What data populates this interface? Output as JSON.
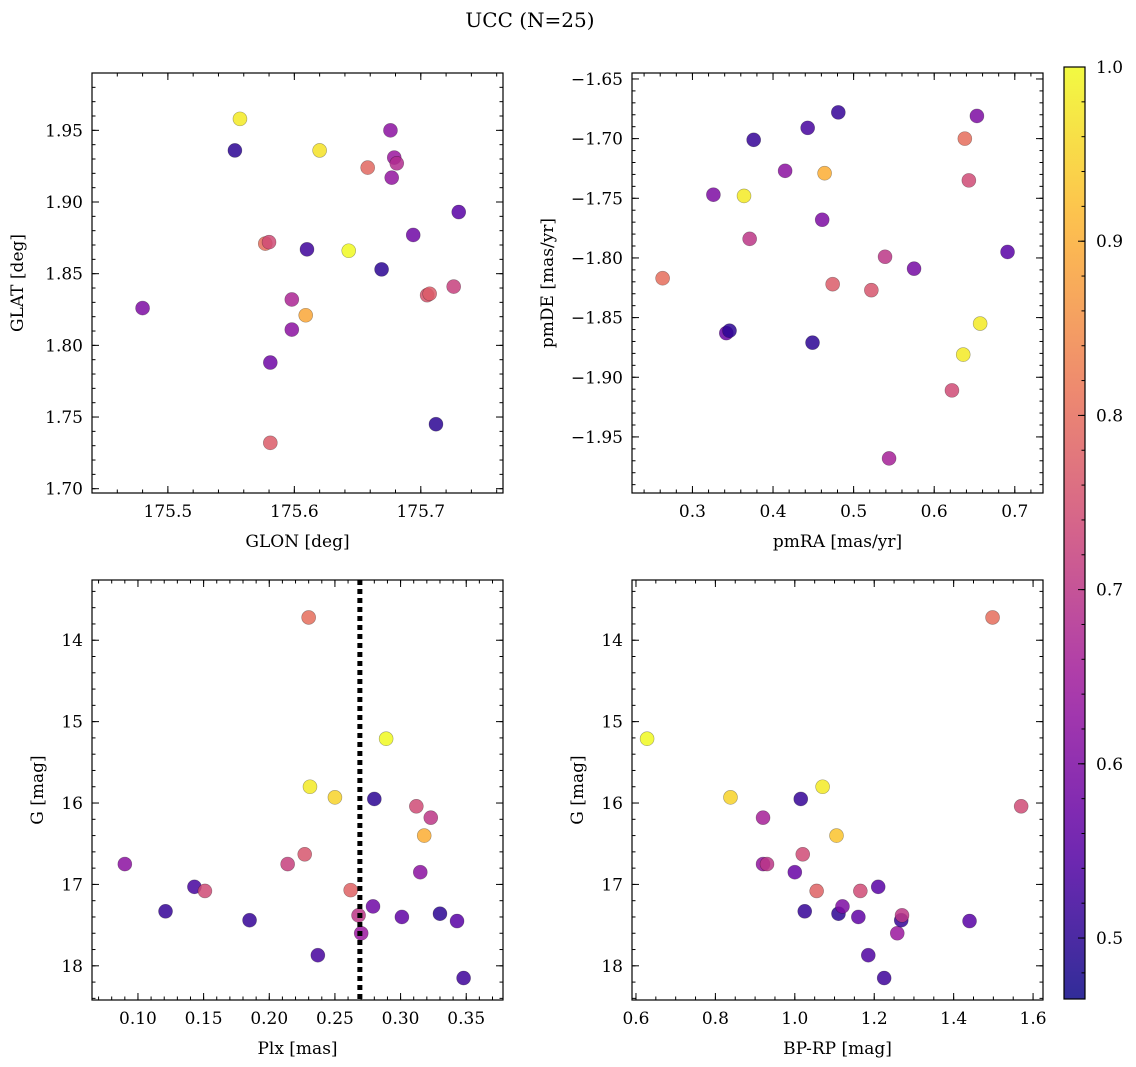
{
  "figure": {
    "title": "UCC (N=25)"
  },
  "colors": {
    "plasma_stops": [
      "#0d0887",
      "#5c01a6",
      "#9c179e",
      "#cc4778",
      "#ed7953",
      "#fdb42f",
      "#f0f921"
    ],
    "threshold_line": "#000000"
  },
  "chart_data": [
    {
      "type": "scatter",
      "name": "position",
      "xlabel": "GLON [deg]",
      "ylabel": "GLAT [deg]",
      "xlim": [
        175.44,
        175.765
      ],
      "ylim": [
        1.697,
        1.99
      ],
      "x_ticks": [
        175.5,
        175.6,
        175.7
      ],
      "x_tick_labels": [
        "175.5",
        "175.6",
        "175.7"
      ],
      "y_ticks": [
        1.7,
        1.75,
        1.8,
        1.85,
        1.9,
        1.95
      ],
      "y_tick_labels": [
        "1.70",
        "1.75",
        "1.80",
        "1.85",
        "1.90",
        "1.95"
      ],
      "x_minor_step": 0.02,
      "y_minor_step": 0.01,
      "points": [
        {
          "x": 175.48,
          "y": 1.826,
          "c": 0.6
        },
        {
          "x": 175.553,
          "y": 1.936,
          "c": 0.5
        },
        {
          "x": 175.557,
          "y": 1.958,
          "c": 0.98
        },
        {
          "x": 175.577,
          "y": 1.871,
          "c": 0.8
        },
        {
          "x": 175.58,
          "y": 1.872,
          "c": 0.74
        },
        {
          "x": 175.581,
          "y": 1.788,
          "c": 0.58
        },
        {
          "x": 175.581,
          "y": 1.732,
          "c": 0.77
        },
        {
          "x": 175.598,
          "y": 1.832,
          "c": 0.67
        },
        {
          "x": 175.598,
          "y": 1.811,
          "c": 0.62
        },
        {
          "x": 175.609,
          "y": 1.821,
          "c": 0.89
        },
        {
          "x": 175.61,
          "y": 1.867,
          "c": 0.52
        },
        {
          "x": 175.62,
          "y": 1.936,
          "c": 0.97
        },
        {
          "x": 175.643,
          "y": 1.866,
          "c": 1.0
        },
        {
          "x": 175.658,
          "y": 1.924,
          "c": 0.79
        },
        {
          "x": 175.669,
          "y": 1.853,
          "c": 0.5
        },
        {
          "x": 175.676,
          "y": 1.95,
          "c": 0.62
        },
        {
          "x": 175.677,
          "y": 1.917,
          "c": 0.63
        },
        {
          "x": 175.679,
          "y": 1.931,
          "c": 0.64
        },
        {
          "x": 175.681,
          "y": 1.927,
          "c": 0.68
        },
        {
          "x": 175.694,
          "y": 1.877,
          "c": 0.58
        },
        {
          "x": 175.705,
          "y": 1.835,
          "c": 0.76
        },
        {
          "x": 175.707,
          "y": 1.836,
          "c": 0.77
        },
        {
          "x": 175.712,
          "y": 1.745,
          "c": 0.5
        },
        {
          "x": 175.726,
          "y": 1.841,
          "c": 0.72
        },
        {
          "x": 175.73,
          "y": 1.893,
          "c": 0.55
        }
      ]
    },
    {
      "type": "scatter",
      "name": "proper-motion",
      "xlabel": "pmRA [mas/yr]",
      "ylabel": "pmDE [mas/yr]",
      "xlim": [
        0.225,
        0.735
      ],
      "ylim": [
        -1.997,
        -1.645
      ],
      "x_ticks": [
        0.3,
        0.4,
        0.5,
        0.6,
        0.7
      ],
      "x_tick_labels": [
        "0.3",
        "0.4",
        "0.5",
        "0.6",
        "0.7"
      ],
      "y_ticks": [
        -1.95,
        -1.9,
        -1.85,
        -1.8,
        -1.75,
        -1.7,
        -1.65
      ],
      "y_tick_labels": [
        "−1.95",
        "−1.90",
        "−1.85",
        "−1.80",
        "−1.75",
        "−1.70",
        "−1.65"
      ],
      "x_minor_step": 0.02,
      "y_minor_step": 0.01,
      "points": [
        {
          "x": 0.263,
          "y": -1.817,
          "c": 0.8
        },
        {
          "x": 0.326,
          "y": -1.747,
          "c": 0.6
        },
        {
          "x": 0.342,
          "y": -1.863,
          "c": 0.57
        },
        {
          "x": 0.346,
          "y": -1.861,
          "c": 0.5
        },
        {
          "x": 0.364,
          "y": -1.748,
          "c": 0.98
        },
        {
          "x": 0.371,
          "y": -1.784,
          "c": 0.7
        },
        {
          "x": 0.376,
          "y": -1.701,
          "c": 0.51
        },
        {
          "x": 0.415,
          "y": -1.727,
          "c": 0.62
        },
        {
          "x": 0.443,
          "y": -1.691,
          "c": 0.53
        },
        {
          "x": 0.449,
          "y": -1.871,
          "c": 0.5
        },
        {
          "x": 0.461,
          "y": -1.768,
          "c": 0.6
        },
        {
          "x": 0.464,
          "y": -1.729,
          "c": 0.9
        },
        {
          "x": 0.474,
          "y": -1.822,
          "c": 0.77
        },
        {
          "x": 0.481,
          "y": -1.678,
          "c": 0.51
        },
        {
          "x": 0.522,
          "y": -1.827,
          "c": 0.76
        },
        {
          "x": 0.539,
          "y": -1.799,
          "c": 0.7
        },
        {
          "x": 0.544,
          "y": -1.968,
          "c": 0.66
        },
        {
          "x": 0.575,
          "y": -1.809,
          "c": 0.59
        },
        {
          "x": 0.622,
          "y": -1.911,
          "c": 0.74
        },
        {
          "x": 0.636,
          "y": -1.881,
          "c": 0.98
        },
        {
          "x": 0.638,
          "y": -1.7,
          "c": 0.8
        },
        {
          "x": 0.643,
          "y": -1.735,
          "c": 0.74
        },
        {
          "x": 0.653,
          "y": -1.681,
          "c": 0.6
        },
        {
          "x": 0.657,
          "y": -1.855,
          "c": 0.98
        },
        {
          "x": 0.691,
          "y": -1.795,
          "c": 0.55
        }
      ]
    },
    {
      "type": "scatter",
      "name": "plx-vs-g",
      "xlabel": "Plx [mas]",
      "ylabel": "G [mag]",
      "xlim": [
        0.065,
        0.378
      ],
      "ylim": [
        18.42,
        13.26
      ],
      "x_ticks": [
        0.1,
        0.15,
        0.2,
        0.25,
        0.3,
        0.35
      ],
      "x_tick_labels": [
        "0.10",
        "0.15",
        "0.20",
        "0.25",
        "0.30",
        "0.35"
      ],
      "y_ticks": [
        14,
        15,
        16,
        17,
        18
      ],
      "y_tick_labels": [
        "14",
        "15",
        "16",
        "17",
        "18"
      ],
      "x_minor_step": 0.01,
      "y_minor_step": 0.2,
      "vline": 0.269,
      "points": [
        {
          "x": 0.09,
          "y": 16.75,
          "c": 0.62
        },
        {
          "x": 0.121,
          "y": 17.33,
          "c": 0.51
        },
        {
          "x": 0.143,
          "y": 17.03,
          "c": 0.53
        },
        {
          "x": 0.151,
          "y": 17.08,
          "c": 0.74
        },
        {
          "x": 0.185,
          "y": 17.44,
          "c": 0.51
        },
        {
          "x": 0.214,
          "y": 16.75,
          "c": 0.72
        },
        {
          "x": 0.227,
          "y": 16.63,
          "c": 0.76
        },
        {
          "x": 0.23,
          "y": 13.72,
          "c": 0.8
        },
        {
          "x": 0.231,
          "y": 15.8,
          "c": 0.98
        },
        {
          "x": 0.237,
          "y": 17.87,
          "c": 0.53
        },
        {
          "x": 0.25,
          "y": 15.93,
          "c": 0.95
        },
        {
          "x": 0.262,
          "y": 17.07,
          "c": 0.78
        },
        {
          "x": 0.268,
          "y": 17.38,
          "c": 0.7
        },
        {
          "x": 0.27,
          "y": 17.6,
          "c": 0.64
        },
        {
          "x": 0.279,
          "y": 17.27,
          "c": 0.58
        },
        {
          "x": 0.28,
          "y": 15.95,
          "c": 0.5
        },
        {
          "x": 0.289,
          "y": 15.21,
          "c": 1.0
        },
        {
          "x": 0.301,
          "y": 17.4,
          "c": 0.56
        },
        {
          "x": 0.312,
          "y": 16.04,
          "c": 0.74
        },
        {
          "x": 0.315,
          "y": 16.85,
          "c": 0.62
        },
        {
          "x": 0.318,
          "y": 16.4,
          "c": 0.9
        },
        {
          "x": 0.323,
          "y": 16.18,
          "c": 0.7
        },
        {
          "x": 0.33,
          "y": 17.36,
          "c": 0.5
        },
        {
          "x": 0.343,
          "y": 17.45,
          "c": 0.55
        },
        {
          "x": 0.348,
          "y": 18.15,
          "c": 0.52
        }
      ]
    },
    {
      "type": "scatter",
      "name": "cmd",
      "xlabel": "BP-RP [mag]",
      "ylabel": "G [mag]",
      "xlim": [
        0.59,
        1.625
      ],
      "ylim": [
        18.42,
        13.26
      ],
      "x_ticks": [
        0.6,
        0.8,
        1.0,
        1.2,
        1.4,
        1.6
      ],
      "x_tick_labels": [
        "0.6",
        "0.8",
        "1.0",
        "1.2",
        "1.4",
        "1.6"
      ],
      "y_ticks": [
        14,
        15,
        16,
        17,
        18
      ],
      "y_tick_labels": [
        "14",
        "15",
        "16",
        "17",
        "18"
      ],
      "x_minor_step": 0.05,
      "y_minor_step": 0.2,
      "points": [
        {
          "x": 0.628,
          "y": 15.21,
          "c": 1.0
        },
        {
          "x": 0.838,
          "y": 15.93,
          "c": 0.95
        },
        {
          "x": 0.92,
          "y": 16.18,
          "c": 0.66
        },
        {
          "x": 0.92,
          "y": 16.75,
          "c": 0.63
        },
        {
          "x": 0.93,
          "y": 16.75,
          "c": 0.7
        },
        {
          "x": 1.0,
          "y": 16.85,
          "c": 0.57
        },
        {
          "x": 1.015,
          "y": 15.95,
          "c": 0.51
        },
        {
          "x": 1.02,
          "y": 16.63,
          "c": 0.74
        },
        {
          "x": 1.025,
          "y": 17.33,
          "c": 0.51
        },
        {
          "x": 1.055,
          "y": 17.08,
          "c": 0.78
        },
        {
          "x": 1.07,
          "y": 15.8,
          "c": 0.98
        },
        {
          "x": 1.105,
          "y": 16.4,
          "c": 0.93
        },
        {
          "x": 1.11,
          "y": 17.36,
          "c": 0.5
        },
        {
          "x": 1.12,
          "y": 17.27,
          "c": 0.6
        },
        {
          "x": 1.16,
          "y": 17.4,
          "c": 0.56
        },
        {
          "x": 1.165,
          "y": 17.08,
          "c": 0.74
        },
        {
          "x": 1.185,
          "y": 17.87,
          "c": 0.54
        },
        {
          "x": 1.21,
          "y": 17.03,
          "c": 0.55
        },
        {
          "x": 1.225,
          "y": 18.15,
          "c": 0.52
        },
        {
          "x": 1.258,
          "y": 17.6,
          "c": 0.64
        },
        {
          "x": 1.268,
          "y": 17.44,
          "c": 0.51
        },
        {
          "x": 1.27,
          "y": 17.38,
          "c": 0.7
        },
        {
          "x": 1.44,
          "y": 17.45,
          "c": 0.55
        },
        {
          "x": 1.498,
          "y": 13.72,
          "c": 0.8
        },
        {
          "x": 1.57,
          "y": 16.04,
          "c": 0.74
        }
      ]
    }
  ],
  "colorbar": {
    "range": [
      0.465,
      1.0
    ],
    "ticks": [
      0.5,
      0.6,
      0.7,
      0.8,
      0.9,
      1.0
    ],
    "tick_labels": [
      "0.5",
      "0.6",
      "0.7",
      "0.8",
      "0.9",
      "1.0"
    ],
    "minor_step": 0.02
  }
}
